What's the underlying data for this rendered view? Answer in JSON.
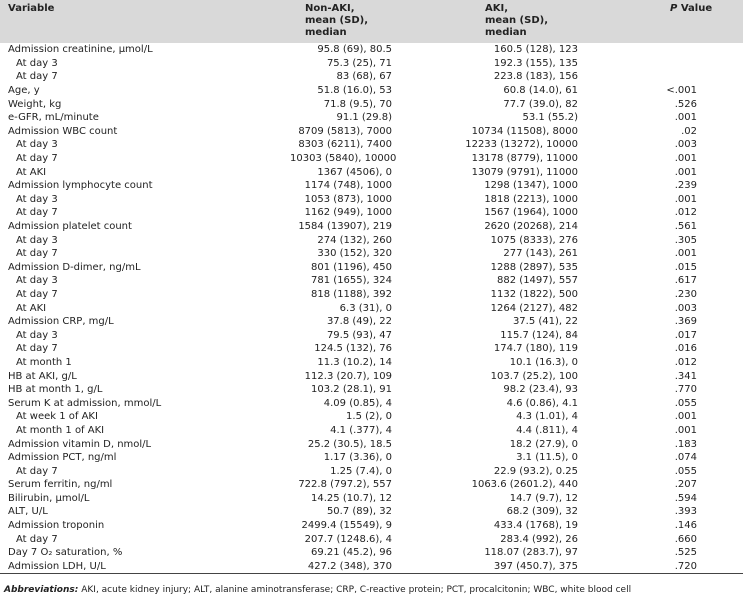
{
  "header": {
    "variable": "Variable",
    "non_aki": [
      "Non-AKI,",
      "mean (SD), median"
    ],
    "aki": [
      "AKI,",
      "mean (SD), median"
    ],
    "p_symbol": "P",
    "p_label": "Value"
  },
  "rows": [
    {
      "variable": "Admission creatinine, μmol/L",
      "non_aki": "95.8 (69), 80.5",
      "aki": "160.5 (128), 123",
      "indent": false
    },
    {
      "variable": "At day 3",
      "non_aki": "75.3 (25), 71",
      "aki": "192.3 (155), 135",
      "indent": true
    },
    {
      "variable": "At day 7",
      "non_aki": "83 (68), 67",
      "aki": "223.8 (183), 156",
      "indent": true
    },
    {
      "variable": "Age, y",
      "non_aki": "51.8 (16.0), 53",
      "aki": "60.8 (14.0), 61",
      "p": "<.001",
      "indent": false
    },
    {
      "variable": "Weight, kg",
      "non_aki": "71.8 (9.5), 70",
      "aki": "77.7 (39.0), 82",
      "p": ".526",
      "indent": false
    },
    {
      "variable": "e-GFR, mL/minute",
      "non_aki": "91.1 (29.8)",
      "aki": "53.1 (55.2)",
      "p": ".001",
      "indent": false
    },
    {
      "variable": "Admission WBC count",
      "non_aki": "8709 (5813), 7000",
      "aki": "10734 (11508), 8000",
      "p": ".02",
      "indent": false
    },
    {
      "variable": "At day 3",
      "non_aki": "8303 (6211), 7400",
      "aki": "12233 (13272), 10000",
      "p": ".003",
      "indent": true
    },
    {
      "variable": "At day 7",
      "non_aki": "10303 (5840), 10000",
      "aki": "13178 (8779), 11000",
      "p": ".001",
      "indent": true
    },
    {
      "variable": "At AKI",
      "non_aki": "1367 (4506), 0",
      "aki": "13079 (9791), 11000",
      "p": ".001",
      "indent": true
    },
    {
      "variable": "Admission lymphocyte count",
      "non_aki": "1174 (748), 1000",
      "aki": "1298 (1347), 1000",
      "p": ".239",
      "indent": false
    },
    {
      "variable": "At day 3",
      "non_aki": "1053 (873), 1000",
      "aki": "1818 (2213), 1000",
      "p": ".001",
      "indent": true
    },
    {
      "variable": "At day 7",
      "non_aki": "1162 (949), 1000",
      "aki": "1567 (1964), 1000",
      "p": ".012",
      "indent": true
    },
    {
      "variable": "Admission platelet count",
      "non_aki": "1584 (13907), 219",
      "aki": "2620 (20268), 214",
      "p": ".561",
      "indent": false
    },
    {
      "variable": "At day 3",
      "non_aki": "274 (132), 260",
      "aki": "1075 (8333), 276",
      "p": ".305",
      "indent": true
    },
    {
      "variable": "At day 7",
      "non_aki": "330 (152), 320",
      "aki": "277 (143), 261",
      "p": ".001",
      "indent": true
    },
    {
      "variable": "Admission D-dimer, ng/mL",
      "non_aki": "801 (1196), 450",
      "aki": "1288 (2897), 535",
      "p": ".015",
      "indent": false
    },
    {
      "variable": "At day 3",
      "non_aki": "781 (1655), 324",
      "aki": "882 (1497), 557",
      "p": ".617",
      "indent": true
    },
    {
      "variable": "At day 7",
      "non_aki": "818 (1188), 392",
      "aki": "1132 (1822), 500",
      "p": ".230",
      "indent": true
    },
    {
      "variable": "At AKI",
      "non_aki": "6.3 (31), 0",
      "aki": "1264 (2127), 482",
      "p": ".003",
      "indent": true
    },
    {
      "variable": "Admission CRP, mg/L",
      "non_aki": "37.8 (49), 22",
      "aki": "37.5 (41), 22",
      "p": ".369",
      "indent": false
    },
    {
      "variable": "At day 3",
      "non_aki": "79.5 (93), 47",
      "aki": "115.7 (124), 84",
      "p": ".017",
      "indent": true
    },
    {
      "variable": "At day 7",
      "non_aki": "124.5 (132), 76",
      "aki": "174.7 (180), 119",
      "p": ".016",
      "indent": true
    },
    {
      "variable": "At month 1",
      "non_aki": "11.3 (10.2), 14",
      "aki": "10.1 (16.3), 0",
      "p": ".012",
      "indent": true
    },
    {
      "variable": "HB at AKI, g/L",
      "non_aki": "112.3 (20.7), 109",
      "aki": "103.7 (25.2), 100",
      "p": ".341",
      "indent": false
    },
    {
      "variable": "HB at month 1, g/L",
      "non_aki": "103.2 (28.1), 91",
      "aki": "98.2 (23.4), 93",
      "p": ".770",
      "indent": false
    },
    {
      "variable": "Serum K at admission, mmol/L",
      "non_aki": "4.09 (0.85), 4",
      "aki": "4.6 (0.86), 4.1",
      "p": ".055",
      "indent": false
    },
    {
      "variable": "At week 1 of AKI",
      "non_aki": "1.5 (2), 0",
      "aki": "4.3 (1.01), 4",
      "p": ".001",
      "indent": true
    },
    {
      "variable": "At month 1 of AKI",
      "non_aki": "4.1 (.377), 4",
      "aki": "4.4 (.811), 4",
      "p": ".001",
      "indent": true
    },
    {
      "variable": "Admission vitamin D, nmol/L",
      "non_aki": "25.2 (30.5), 18.5",
      "aki": "18.2 (27.9), 0",
      "p": ".183",
      "indent": false
    },
    {
      "variable": "Admission PCT, ng/ml",
      "non_aki": "1.17 (3.36), 0",
      "aki": "3.1 (11.5), 0",
      "p": ".074",
      "indent": false
    },
    {
      "variable": "At day 7",
      "non_aki": "1.25 (7.4), 0",
      "aki": "22.9 (93.2), 0.25",
      "p": ".055",
      "indent": true
    },
    {
      "variable": "Serum ferritin, ng/ml",
      "non_aki": "722.8 (797.2), 557",
      "aki": "1063.6 (2601.2), 440",
      "p": ".207",
      "indent": false
    },
    {
      "variable": "Bilirubin, μmol/L",
      "non_aki": "14.25 (10.7), 12",
      "aki": "14.7 (9.7), 12",
      "p": ".594",
      "indent": false
    },
    {
      "variable": "ALT, U/L",
      "non_aki": "50.7 (89), 32",
      "aki": "68.2 (309), 32",
      "p": ".393",
      "indent": false
    },
    {
      "variable": "Admission troponin",
      "non_aki": "2499.4 (15549), 9",
      "aki": "433.4 (1768), 19",
      "p": ".146",
      "indent": false
    },
    {
      "variable": "At day 7",
      "non_aki": "207.7 (1248.6), 4",
      "aki": "283.4 (992), 26",
      "p": ".660",
      "indent": true
    },
    {
      "variable": "Day 7 O₂ saturation, %",
      "non_aki": "69.21 (45.2), 96",
      "aki": "118.07 (283.7), 97",
      "p": ".525",
      "indent": false
    },
    {
      "variable": "Admission LDH, U/L",
      "non_aki": "427.2 (348), 370",
      "aki": "397 (450.7), 375",
      "p": ".720",
      "indent": false
    }
  ],
  "footer": {
    "label": "Abbreviations:",
    "text": "AKI, acute kidney injury; ALT, alanine aminotransferase; CRP, C-reactive protein; PCT, procalcitonin; WBC, white blood cell"
  }
}
